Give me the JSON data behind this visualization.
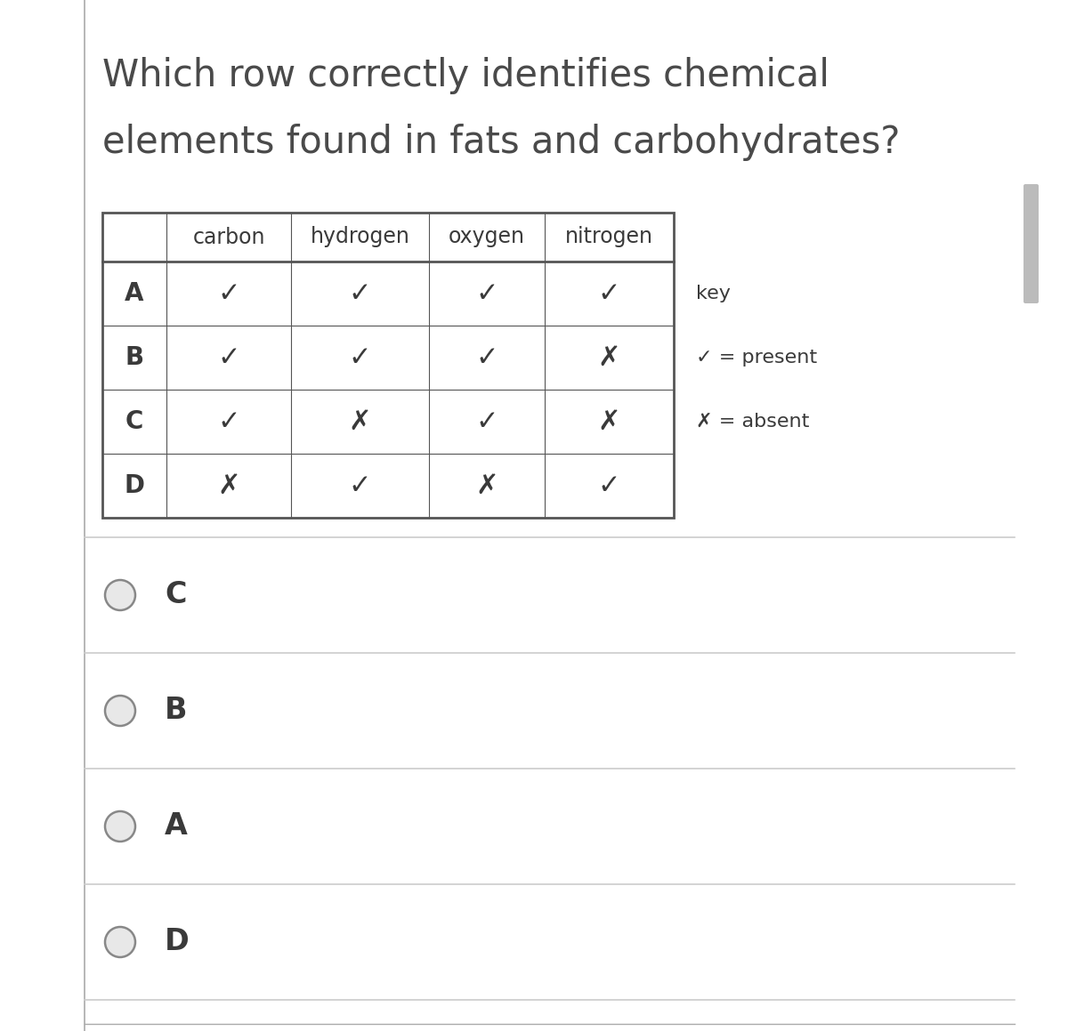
{
  "title_line1": "Which row correctly identifies chemical",
  "title_line2": "elements found in fats and carbohydrates?",
  "title_fontsize": 30,
  "title_color": "#4a4a4a",
  "panel_color": "#ffffff",
  "col_headers": [
    "",
    "carbon",
    "hydrogen",
    "oxygen",
    "nitrogen"
  ],
  "row_labels": [
    "A",
    "B",
    "C",
    "D"
  ],
  "table_data": [
    [
      "✓",
      "✓",
      "✓",
      "✓"
    ],
    [
      "✓",
      "✓",
      "✓",
      "✗"
    ],
    [
      "✓",
      "✗",
      "✓",
      "✗"
    ],
    [
      "✗",
      "✓",
      "✗",
      "✓"
    ]
  ],
  "key_title": "key",
  "key_check": "✓ = present",
  "key_cross": "✗ = absent",
  "answer_options": [
    "C",
    "B",
    "A",
    "D"
  ],
  "answer_labels_fontsize": 24,
  "table_header_fontsize": 17,
  "table_cell_fontsize": 22,
  "table_row_label_fontsize": 20,
  "key_fontsize": 16,
  "separator_color": "#cccccc",
  "table_border_color": "#555555",
  "cell_text_color": "#3a3a3a",
  "radio_circle_color": "#888888",
  "radio_fill_color": "#e8e8e8",
  "left_line_color": "#aaaaaa",
  "scrollbar_color": "#bbbbbb",
  "bg_color": "#f5f5f5"
}
